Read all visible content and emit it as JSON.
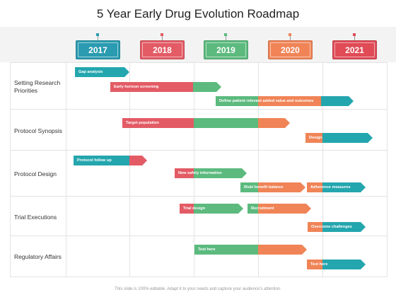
{
  "title": "5 Year Early Drug Evolution Roadmap",
  "footer": "This slide is 100% editable. Adapt it to your needs and capture your audience's attention.",
  "colors": {
    "teal": "#24a6ae",
    "red": "#e35b65",
    "green": "#5cba7e",
    "orange": "#f08457",
    "crimson": "#e04b56"
  },
  "years": [
    {
      "label": "2017",
      "color": "#2a9bb0"
    },
    {
      "label": "2018",
      "color": "#e35b65"
    },
    {
      "label": "2019",
      "color": "#5cba7e"
    },
    {
      "label": "2020",
      "color": "#f08457"
    },
    {
      "label": "2021",
      "color": "#e04b56"
    }
  ],
  "rows": [
    {
      "label": "Setting Research Priorities"
    },
    {
      "label": "Protocol Synopsis"
    },
    {
      "label": "Protocol Design"
    },
    {
      "label": "Trial Executions"
    },
    {
      "label": "Regulatory Affairs"
    }
  ],
  "tasks": [
    {
      "label": "Gap analysis"
    },
    {
      "label": "Early horizon screening"
    },
    {
      "label": "Define patient relevant added value and outcomes"
    },
    {
      "label": "Target population"
    },
    {
      "label": "Design"
    },
    {
      "label": "Protocol follow up"
    },
    {
      "label": "New safety information"
    },
    {
      "label": "Risk/ benefit  balance"
    },
    {
      "label": "Adherence measures"
    },
    {
      "label": "Trial design"
    },
    {
      "label": "Recruitment"
    },
    {
      "label": "Overcome challenges"
    },
    {
      "label": "Test here"
    },
    {
      "label": "Text here"
    }
  ]
}
